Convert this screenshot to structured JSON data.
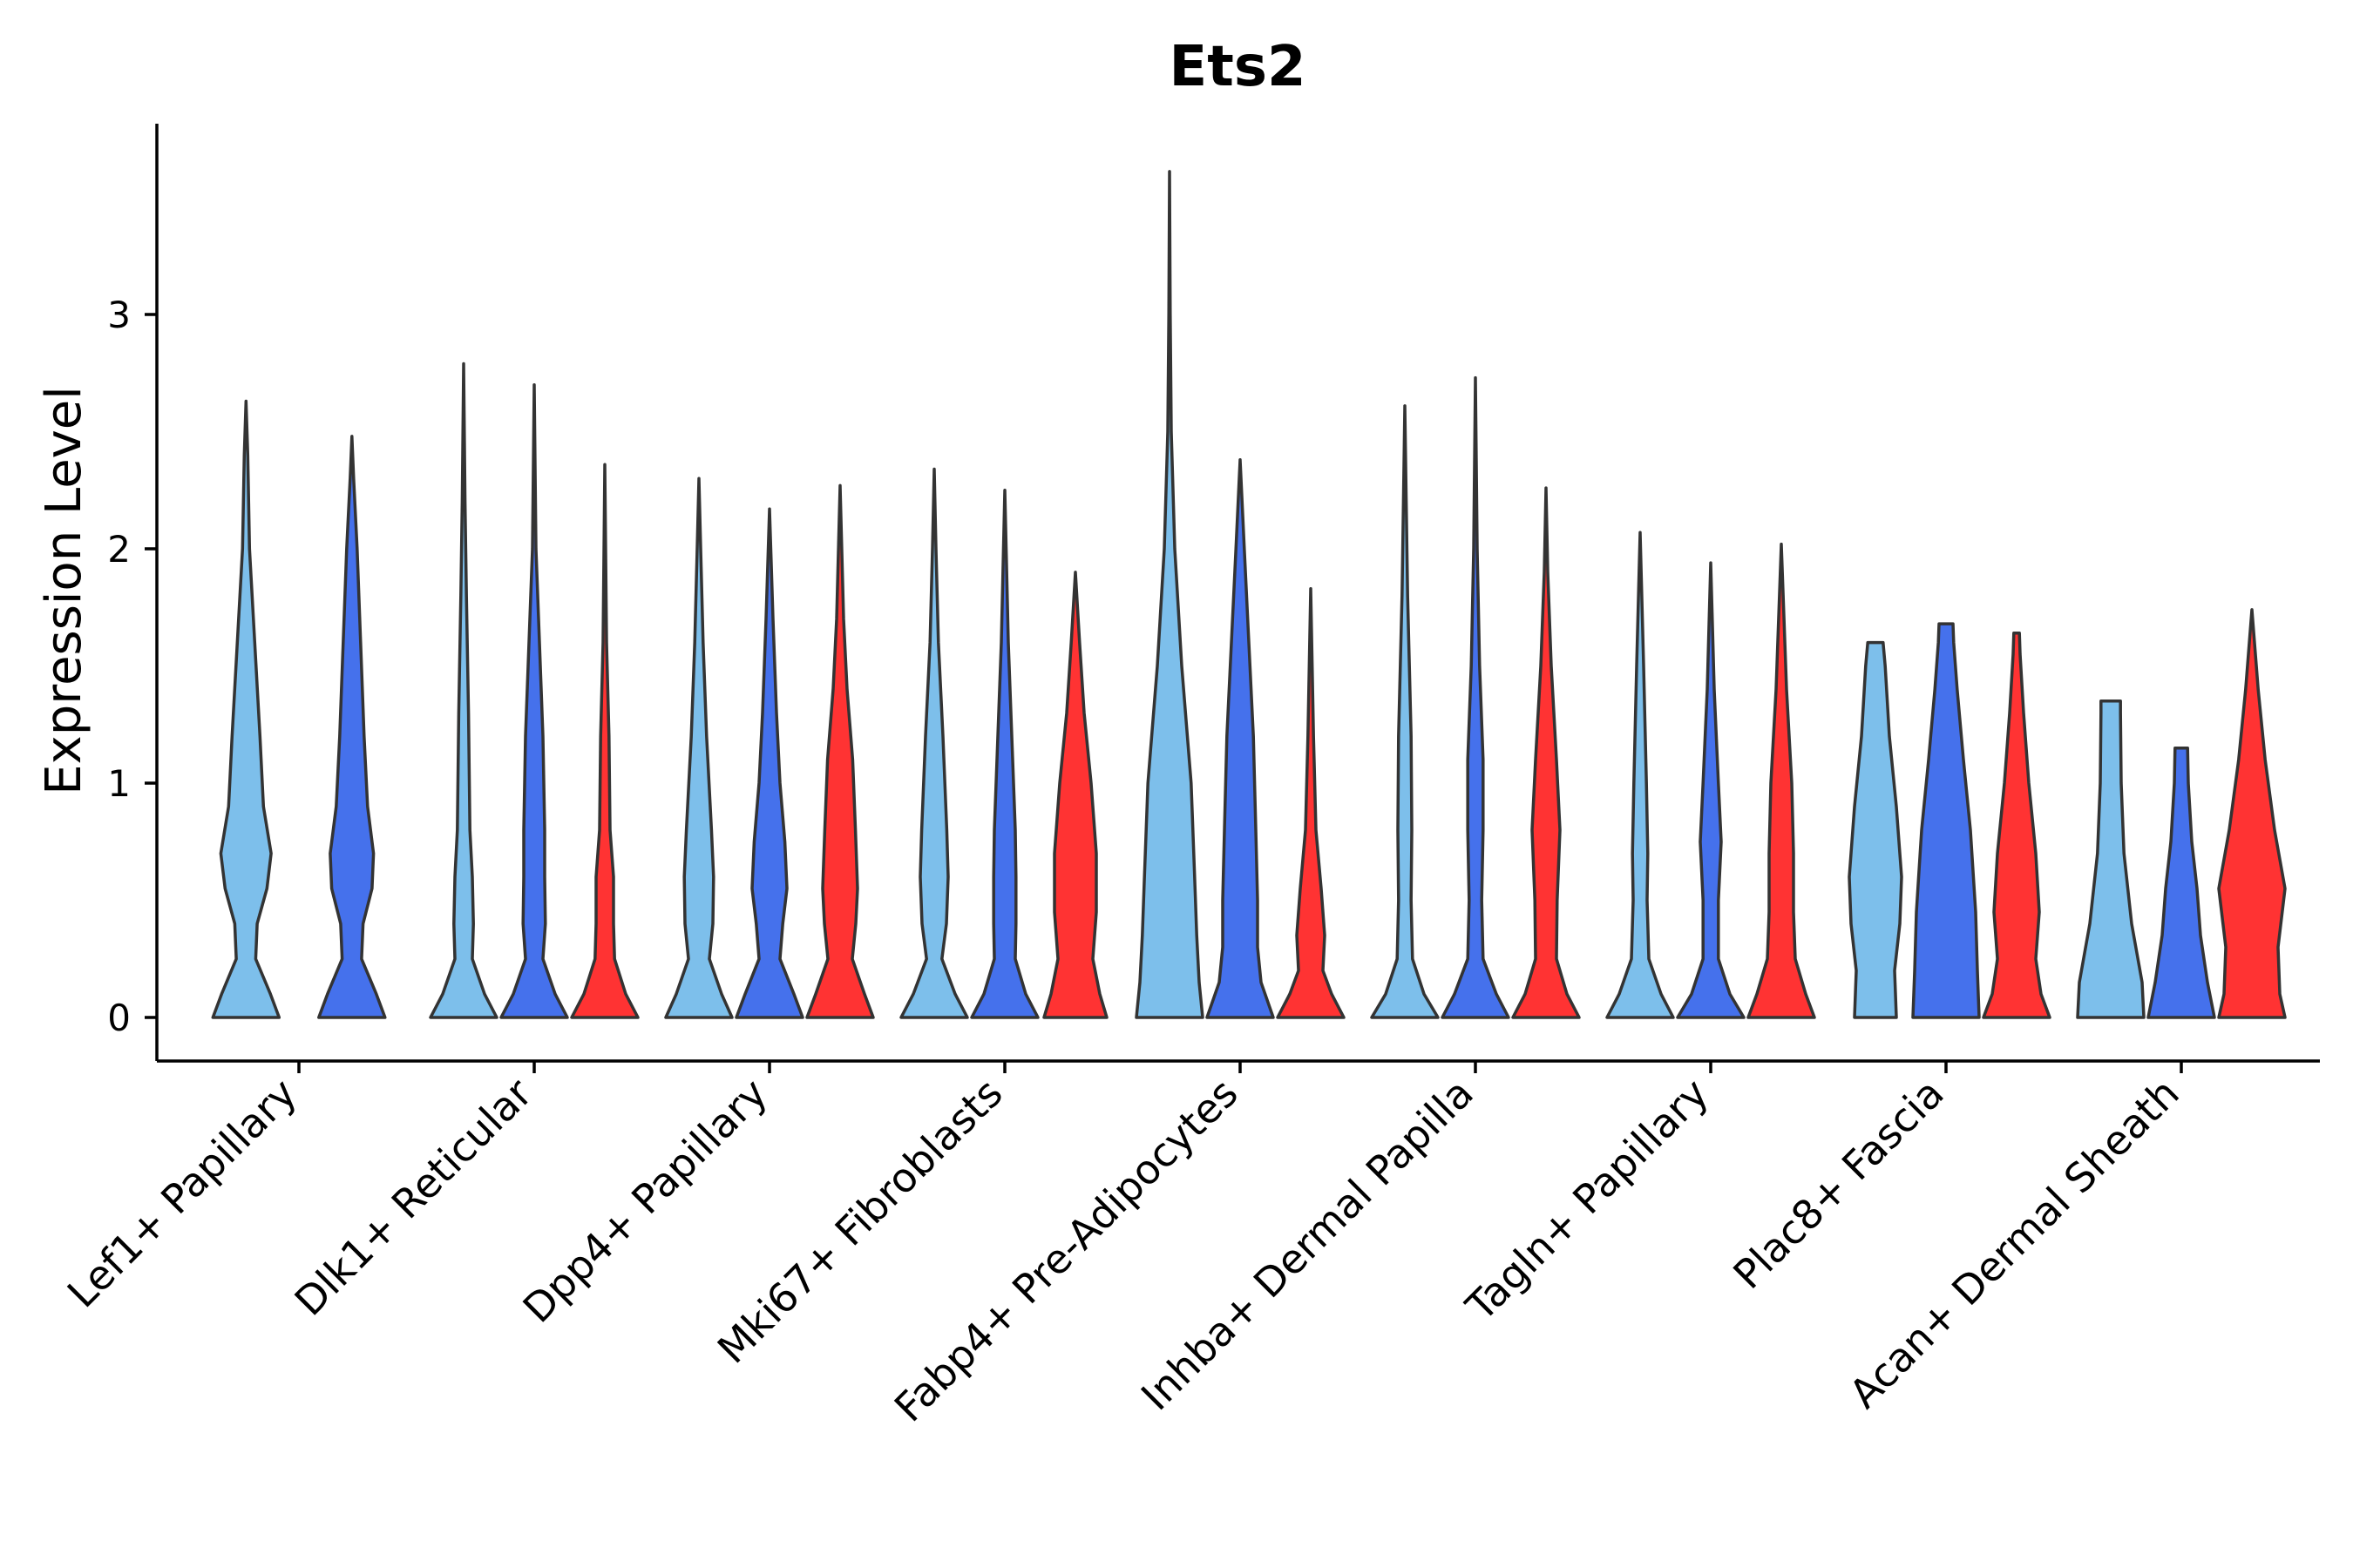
{
  "chart_data": {
    "type": "violin",
    "title": "Ets2",
    "xlabel": "",
    "ylabel": "Expression Level",
    "ylim": [
      -0.18,
      3.8
    ],
    "yticks": [
      0,
      1,
      2,
      3
    ],
    "colors": {
      "condition_a": "#7dbfeb",
      "condition_b": "#4571ec",
      "condition_c": "#ff3333",
      "outline": "#333333"
    },
    "categories": [
      "Lef1+ Papillary",
      "Dlk1+ Reticular",
      "Dpp4+ Papillary",
      "Mki67+ Fibroblasts",
      "Fabp4+ Pre-Adipocytes",
      "Inhba+ Dermal Papilla",
      "Tagln+ Papillary",
      "Plac8+ Fascia",
      "Acan+ Dermal Sheath"
    ],
    "violins": [
      {
        "category": "Lef1+ Papillary",
        "group": "condition_a",
        "max": 2.63,
        "profile": [
          [
            0,
            0.95
          ],
          [
            0.1,
            0.7
          ],
          [
            0.25,
            0.28
          ],
          [
            0.4,
            0.32
          ],
          [
            0.55,
            0.6
          ],
          [
            0.7,
            0.72
          ],
          [
            0.9,
            0.5
          ],
          [
            1.2,
            0.4
          ],
          [
            1.6,
            0.25
          ],
          [
            2.0,
            0.1
          ],
          [
            2.4,
            0.05
          ],
          [
            2.63,
            0
          ]
        ]
      },
      {
        "category": "Lef1+ Papillary",
        "group": "condition_b",
        "max": 2.48,
        "profile": [
          [
            0,
            0.95
          ],
          [
            0.1,
            0.7
          ],
          [
            0.25,
            0.28
          ],
          [
            0.4,
            0.32
          ],
          [
            0.55,
            0.58
          ],
          [
            0.7,
            0.62
          ],
          [
            0.9,
            0.45
          ],
          [
            1.2,
            0.35
          ],
          [
            1.6,
            0.25
          ],
          [
            2.0,
            0.15
          ],
          [
            2.3,
            0.05
          ],
          [
            2.48,
            0
          ]
        ]
      },
      {
        "category": "Dlk1+ Reticular",
        "group": "condition_a",
        "max": 2.79,
        "profile": [
          [
            0,
            0.95
          ],
          [
            0.1,
            0.6
          ],
          [
            0.25,
            0.25
          ],
          [
            0.4,
            0.28
          ],
          [
            0.6,
            0.25
          ],
          [
            0.8,
            0.18
          ],
          [
            1.3,
            0.14
          ],
          [
            1.8,
            0.08
          ],
          [
            2.2,
            0.04
          ],
          [
            2.79,
            0
          ]
        ]
      },
      {
        "category": "Dlk1+ Reticular",
        "group": "condition_b",
        "max": 2.7,
        "profile": [
          [
            0,
            0.95
          ],
          [
            0.1,
            0.6
          ],
          [
            0.25,
            0.25
          ],
          [
            0.4,
            0.32
          ],
          [
            0.6,
            0.3
          ],
          [
            0.8,
            0.3
          ],
          [
            1.2,
            0.25
          ],
          [
            1.6,
            0.15
          ],
          [
            2.0,
            0.05
          ],
          [
            2.7,
            0
          ]
        ]
      },
      {
        "category": "Dlk1+ Reticular",
        "group": "condition_c",
        "max": 2.36,
        "profile": [
          [
            0,
            0.95
          ],
          [
            0.1,
            0.6
          ],
          [
            0.25,
            0.28
          ],
          [
            0.4,
            0.25
          ],
          [
            0.6,
            0.25
          ],
          [
            0.8,
            0.15
          ],
          [
            1.2,
            0.12
          ],
          [
            1.6,
            0.05
          ],
          [
            2.36,
            0
          ]
        ]
      },
      {
        "category": "Dpp4+ Papillary",
        "group": "condition_a",
        "max": 2.3,
        "profile": [
          [
            0,
            0.95
          ],
          [
            0.1,
            0.65
          ],
          [
            0.25,
            0.3
          ],
          [
            0.4,
            0.4
          ],
          [
            0.6,
            0.42
          ],
          [
            0.8,
            0.36
          ],
          [
            1.2,
            0.22
          ],
          [
            1.6,
            0.12
          ],
          [
            2.0,
            0.05
          ],
          [
            2.3,
            0
          ]
        ]
      },
      {
        "category": "Dpp4+ Papillary",
        "group": "condition_b",
        "max": 2.17,
        "profile": [
          [
            0,
            0.95
          ],
          [
            0.1,
            0.7
          ],
          [
            0.25,
            0.3
          ],
          [
            0.4,
            0.38
          ],
          [
            0.55,
            0.5
          ],
          [
            0.75,
            0.44
          ],
          [
            1.0,
            0.3
          ],
          [
            1.3,
            0.2
          ],
          [
            1.7,
            0.1
          ],
          [
            2.17,
            0
          ]
        ]
      },
      {
        "category": "Dpp4+ Papillary",
        "group": "condition_c",
        "max": 2.27,
        "profile": [
          [
            0,
            0.95
          ],
          [
            0.1,
            0.7
          ],
          [
            0.25,
            0.35
          ],
          [
            0.4,
            0.45
          ],
          [
            0.55,
            0.5
          ],
          [
            0.8,
            0.44
          ],
          [
            1.1,
            0.36
          ],
          [
            1.4,
            0.2
          ],
          [
            1.7,
            0.1
          ],
          [
            2.27,
            0
          ]
        ]
      },
      {
        "category": "Mki67+ Fibroblasts",
        "group": "condition_a",
        "max": 2.34,
        "profile": [
          [
            0,
            0.95
          ],
          [
            0.1,
            0.6
          ],
          [
            0.25,
            0.22
          ],
          [
            0.4,
            0.35
          ],
          [
            0.6,
            0.4
          ],
          [
            0.8,
            0.36
          ],
          [
            1.2,
            0.25
          ],
          [
            1.6,
            0.12
          ],
          [
            2.0,
            0.05
          ],
          [
            2.34,
            0
          ]
        ]
      },
      {
        "category": "Mki67+ Fibroblasts",
        "group": "condition_b",
        "max": 2.25,
        "profile": [
          [
            0,
            0.95
          ],
          [
            0.1,
            0.6
          ],
          [
            0.25,
            0.3
          ],
          [
            0.4,
            0.32
          ],
          [
            0.6,
            0.32
          ],
          [
            0.8,
            0.3
          ],
          [
            1.2,
            0.2
          ],
          [
            1.6,
            0.1
          ],
          [
            2.25,
            0
          ]
        ]
      },
      {
        "category": "Mki67+ Fibroblasts",
        "group": "condition_c",
        "max": 1.9,
        "profile": [
          [
            0,
            0.9
          ],
          [
            0.1,
            0.7
          ],
          [
            0.25,
            0.5
          ],
          [
            0.45,
            0.6
          ],
          [
            0.7,
            0.6
          ],
          [
            1.0,
            0.45
          ],
          [
            1.3,
            0.25
          ],
          [
            1.6,
            0.12
          ],
          [
            1.9,
            0
          ]
        ]
      },
      {
        "category": "Fabp4+ Pre-Adipocytes",
        "group": "condition_a",
        "max": 3.61,
        "profile": [
          [
            0,
            0.95
          ],
          [
            0.15,
            0.85
          ],
          [
            0.35,
            0.78
          ],
          [
            0.6,
            0.72
          ],
          [
            1.0,
            0.62
          ],
          [
            1.5,
            0.35
          ],
          [
            2.0,
            0.15
          ],
          [
            2.5,
            0.05
          ],
          [
            3.0,
            0.02
          ],
          [
            3.61,
            0
          ]
        ]
      },
      {
        "category": "Fabp4+ Pre-Adipocytes",
        "group": "condition_b",
        "max": 2.38,
        "profile": [
          [
            0,
            0.95
          ],
          [
            0.15,
            0.6
          ],
          [
            0.3,
            0.5
          ],
          [
            0.5,
            0.5
          ],
          [
            0.8,
            0.45
          ],
          [
            1.2,
            0.38
          ],
          [
            1.6,
            0.25
          ],
          [
            2.0,
            0.12
          ],
          [
            2.38,
            0
          ]
        ]
      },
      {
        "category": "Fabp4+ Pre-Adipocytes",
        "group": "condition_c",
        "max": 1.83,
        "profile": [
          [
            0,
            0.95
          ],
          [
            0.1,
            0.6
          ],
          [
            0.2,
            0.35
          ],
          [
            0.35,
            0.4
          ],
          [
            0.55,
            0.3
          ],
          [
            0.8,
            0.15
          ],
          [
            1.2,
            0.08
          ],
          [
            1.83,
            0
          ]
        ]
      },
      {
        "category": "Inhba+ Dermal Papilla",
        "group": "condition_a",
        "max": 2.61,
        "profile": [
          [
            0,
            0.95
          ],
          [
            0.1,
            0.55
          ],
          [
            0.25,
            0.22
          ],
          [
            0.5,
            0.18
          ],
          [
            0.8,
            0.2
          ],
          [
            1.2,
            0.18
          ],
          [
            1.8,
            0.08
          ],
          [
            2.2,
            0.04
          ],
          [
            2.61,
            0
          ]
        ]
      },
      {
        "category": "Inhba+ Dermal Papilla",
        "group": "condition_b",
        "max": 2.73,
        "profile": [
          [
            0,
            0.95
          ],
          [
            0.1,
            0.6
          ],
          [
            0.25,
            0.22
          ],
          [
            0.5,
            0.18
          ],
          [
            0.8,
            0.22
          ],
          [
            1.1,
            0.22
          ],
          [
            1.5,
            0.12
          ],
          [
            2.0,
            0.05
          ],
          [
            2.73,
            0
          ]
        ]
      },
      {
        "category": "Inhba+ Dermal Papilla",
        "group": "condition_c",
        "max": 2.26,
        "profile": [
          [
            0,
            0.95
          ],
          [
            0.1,
            0.6
          ],
          [
            0.25,
            0.3
          ],
          [
            0.5,
            0.32
          ],
          [
            0.8,
            0.4
          ],
          [
            1.1,
            0.3
          ],
          [
            1.5,
            0.15
          ],
          [
            1.9,
            0.05
          ],
          [
            2.26,
            0
          ]
        ]
      },
      {
        "category": "Tagln+ Papillary",
        "group": "condition_a",
        "max": 2.07,
        "profile": [
          [
            0,
            0.95
          ],
          [
            0.1,
            0.6
          ],
          [
            0.25,
            0.25
          ],
          [
            0.5,
            0.2
          ],
          [
            0.7,
            0.22
          ],
          [
            1.0,
            0.18
          ],
          [
            1.5,
            0.1
          ],
          [
            2.07,
            0
          ]
        ]
      },
      {
        "category": "Tagln+ Papillary",
        "group": "condition_b",
        "max": 1.94,
        "profile": [
          [
            0,
            0.95
          ],
          [
            0.1,
            0.55
          ],
          [
            0.25,
            0.22
          ],
          [
            0.5,
            0.22
          ],
          [
            0.75,
            0.3
          ],
          [
            1.0,
            0.22
          ],
          [
            1.4,
            0.1
          ],
          [
            1.94,
            0
          ]
        ]
      },
      {
        "category": "Tagln+ Papillary",
        "group": "condition_c",
        "max": 2.02,
        "profile": [
          [
            0,
            0.95
          ],
          [
            0.1,
            0.7
          ],
          [
            0.25,
            0.4
          ],
          [
            0.45,
            0.35
          ],
          [
            0.7,
            0.35
          ],
          [
            1.0,
            0.3
          ],
          [
            1.4,
            0.15
          ],
          [
            2.02,
            0
          ]
        ]
      },
      {
        "category": "Plac8+ Fascia",
        "group": "condition_a",
        "max": 1.6,
        "profile": [
          [
            0,
            0.6
          ],
          [
            0.2,
            0.55
          ],
          [
            0.4,
            0.7
          ],
          [
            0.6,
            0.75
          ],
          [
            0.9,
            0.6
          ],
          [
            1.2,
            0.4
          ],
          [
            1.5,
            0.28
          ],
          [
            1.6,
            0.22
          ]
        ]
      },
      {
        "category": "Plac8+ Fascia",
        "group": "condition_b",
        "max": 1.68,
        "profile": [
          [
            0,
            0.95
          ],
          [
            0.2,
            0.9
          ],
          [
            0.45,
            0.85
          ],
          [
            0.8,
            0.7
          ],
          [
            1.1,
            0.5
          ],
          [
            1.4,
            0.32
          ],
          [
            1.6,
            0.22
          ],
          [
            1.68,
            0.2
          ]
        ]
      },
      {
        "category": "Plac8+ Fascia",
        "group": "condition_c",
        "max": 1.64,
        "profile": [
          [
            0,
            0.95
          ],
          [
            0.1,
            0.7
          ],
          [
            0.25,
            0.55
          ],
          [
            0.45,
            0.65
          ],
          [
            0.7,
            0.55
          ],
          [
            1.0,
            0.35
          ],
          [
            1.3,
            0.2
          ],
          [
            1.55,
            0.1
          ],
          [
            1.64,
            0.08
          ]
        ]
      },
      {
        "category": "Acan+ Dermal Sheath",
        "group": "condition_a",
        "max": 1.35,
        "profile": [
          [
            0,
            0.95
          ],
          [
            0.15,
            0.9
          ],
          [
            0.4,
            0.6
          ],
          [
            0.7,
            0.38
          ],
          [
            1.0,
            0.3
          ],
          [
            1.3,
            0.28
          ],
          [
            1.35,
            0.28
          ]
        ]
      },
      {
        "category": "Acan+ Dermal Sheath",
        "group": "condition_b",
        "max": 1.15,
        "profile": [
          [
            0,
            0.95
          ],
          [
            0.15,
            0.75
          ],
          [
            0.35,
            0.55
          ],
          [
            0.55,
            0.45
          ],
          [
            0.75,
            0.3
          ],
          [
            1.0,
            0.2
          ],
          [
            1.15,
            0.18
          ]
        ]
      },
      {
        "category": "Acan+ Dermal Sheath",
        "group": "condition_c",
        "max": 1.74,
        "profile": [
          [
            0,
            0.95
          ],
          [
            0.1,
            0.8
          ],
          [
            0.3,
            0.75
          ],
          [
            0.55,
            0.95
          ],
          [
            0.8,
            0.65
          ],
          [
            1.1,
            0.38
          ],
          [
            1.4,
            0.18
          ],
          [
            1.74,
            0
          ]
        ]
      }
    ]
  }
}
